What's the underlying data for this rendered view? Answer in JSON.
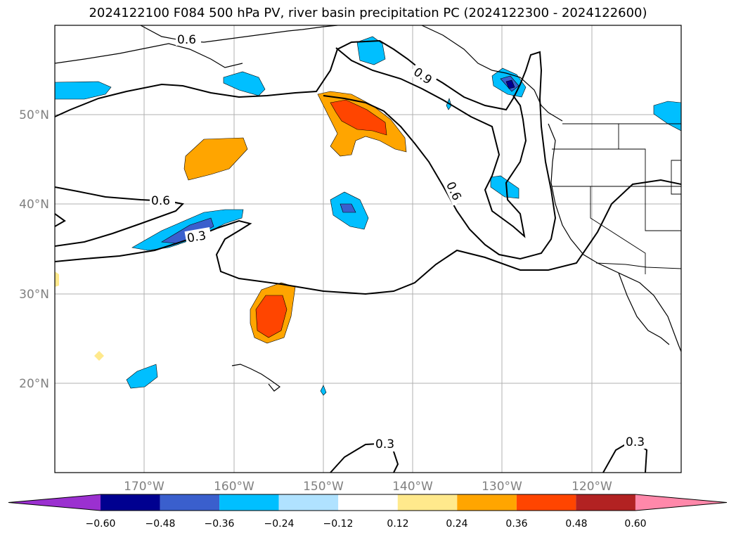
{
  "title": "2024122100 F084 500 hPa PV, river basin precipitation PC (2024122300 - 2024122600)",
  "map": {
    "lat_labels": [
      "50°N",
      "40°N",
      "30°N",
      "20°N"
    ],
    "lon_labels": [
      "170°W",
      "160°W",
      "150°W",
      "140°W",
      "130°W",
      "120°W"
    ],
    "contour_labels": [
      "0.6",
      "0.9",
      "0.6",
      "0.6",
      "0.3",
      "0.3",
      "0.3"
    ]
  },
  "colorbar": {
    "ticks": [
      "−0.60",
      "−0.48",
      "−0.36",
      "−0.24",
      "−0.12",
      "0.12",
      "0.24",
      "0.36",
      "0.48",
      "0.60"
    ],
    "colors": [
      "#9b30d0",
      "#000090",
      "#3a5fcd",
      "#00bfff",
      "#b0e2ff",
      "#ffffff",
      "#ffe98c",
      "#ffa500",
      "#ff4500",
      "#b22222",
      "#ff88aa"
    ]
  }
}
